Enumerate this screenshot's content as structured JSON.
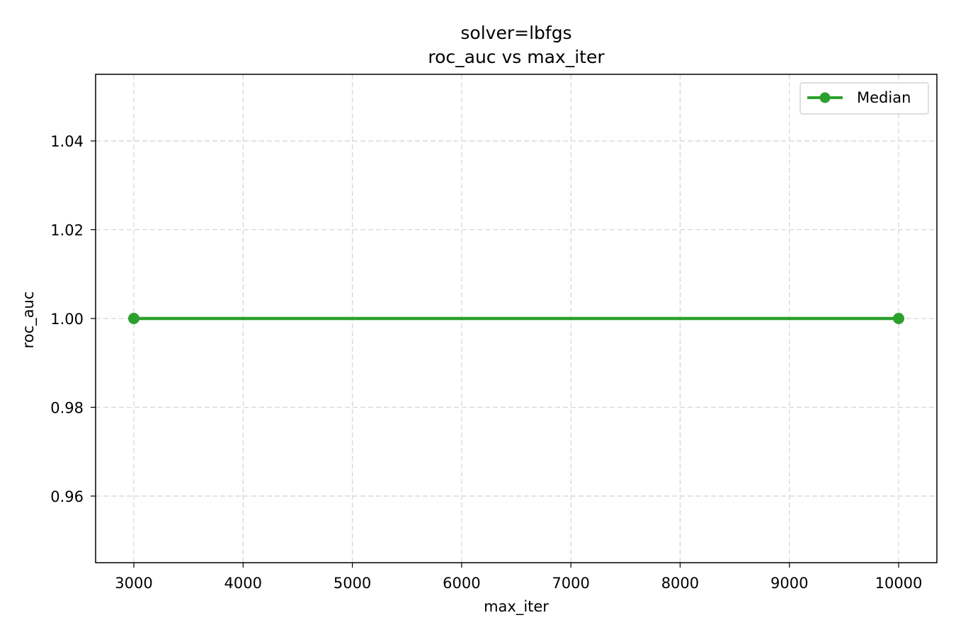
{
  "chart_data": {
    "type": "line",
    "title": "solver=lbfgs",
    "subtitle": "roc_auc vs max_iter",
    "xlabel": "max_iter",
    "ylabel": "roc_auc",
    "xlim": [
      2650,
      10350
    ],
    "ylim": [
      0.945,
      1.055
    ],
    "x_ticks": [
      3000,
      4000,
      5000,
      6000,
      7000,
      8000,
      9000,
      10000
    ],
    "y_ticks": [
      0.96,
      0.98,
      1.0,
      1.02,
      1.04
    ],
    "y_tick_labels": [
      "0.96",
      "0.98",
      "1.00",
      "1.02",
      "1.04"
    ],
    "grid": true,
    "legend_position": "top-right",
    "series": [
      {
        "name": "Median",
        "color": "#2ca02c",
        "marker": "circle",
        "x": [
          3000,
          10000
        ],
        "y": [
          1.0,
          1.0
        ]
      }
    ]
  }
}
